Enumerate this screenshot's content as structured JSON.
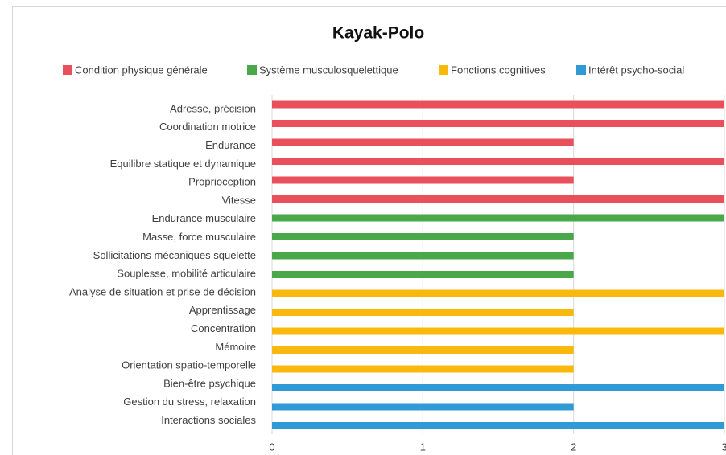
{
  "chart_data": {
    "type": "bar",
    "orientation": "horizontal",
    "title": "Kayak-Polo",
    "categories": [
      "Adresse, précision",
      "Coordination motrice",
      "Endurance",
      "Equilibre statique et dynamique",
      "Proprioception",
      "Vitesse",
      "Endurance musculaire",
      "Masse,  force musculaire",
      "Sollicitations mécaniques squelette",
      "Souplesse, mobilité articulaire",
      "Analyse de situation et prise de décision",
      "Apprentissage",
      "Concentration",
      "Mémoire",
      "Orientation spatio-temporelle",
      "Bien-être psychique",
      "Gestion du stress, relaxation",
      "Interactions sociales"
    ],
    "series": [
      {
        "name": "Condition physique générale",
        "color": "#e8505b",
        "values": [
          3,
          3,
          2,
          3,
          2,
          3,
          null,
          null,
          null,
          null,
          null,
          null,
          null,
          null,
          null,
          null,
          null,
          null
        ]
      },
      {
        "name": "Système musculosquelettique",
        "color": "#4aa84a",
        "values": [
          null,
          null,
          null,
          null,
          null,
          null,
          3,
          2,
          2,
          2,
          null,
          null,
          null,
          null,
          null,
          null,
          null,
          null
        ]
      },
      {
        "name": "Fonctions cognitives",
        "color": "#f8b90c",
        "values": [
          null,
          null,
          null,
          null,
          null,
          null,
          null,
          null,
          null,
          null,
          3,
          2,
          3,
          2,
          2,
          null,
          null,
          null
        ]
      },
      {
        "name": "Intérêt psycho-social",
        "color": "#2f9ad6",
        "values": [
          null,
          null,
          null,
          null,
          null,
          null,
          null,
          null,
          null,
          null,
          null,
          null,
          null,
          null,
          null,
          3,
          2,
          3
        ]
      }
    ],
    "xlim": [
      0,
      3
    ],
    "xticks": [
      0,
      1,
      2,
      3
    ],
    "grid": true,
    "legend": "top"
  }
}
